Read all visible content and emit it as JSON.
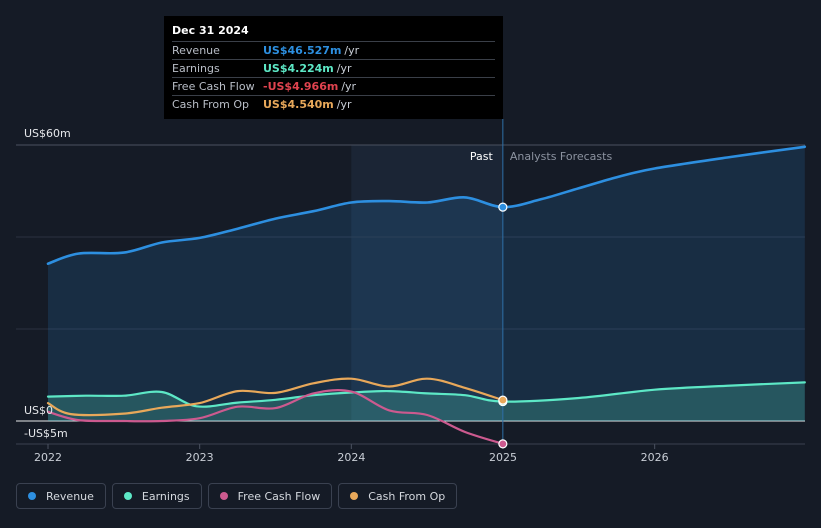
{
  "chart_data": {
    "type": "line",
    "y_axis": {
      "top_label": "US$60m",
      "zero_label": "US$0",
      "bottom_label": "-US$5m",
      "ylim": [
        -5,
        60
      ]
    },
    "x_axis": {
      "ticks": [
        {
          "year": 2022,
          "label": "2022"
        },
        {
          "year": 2023,
          "label": "2023"
        },
        {
          "year": 2024,
          "label": "2024"
        },
        {
          "year": 2025,
          "label": "2025"
        },
        {
          "year": 2026,
          "label": "2026"
        }
      ],
      "xlim": [
        2021.82,
        2026.99
      ]
    },
    "divider": {
      "year": 2024.999,
      "past_label": "Past",
      "forecast_label": "Analysts Forecasts"
    },
    "highlight_band": [
      2024.0,
      2024.999
    ],
    "series": [
      {
        "name": "Revenue",
        "color": "#2d8fe0",
        "filled": true,
        "points": [
          [
            2022.0,
            34.2
          ],
          [
            2022.2,
            36.4
          ],
          [
            2022.5,
            36.6
          ],
          [
            2022.75,
            38.8
          ],
          [
            2023.0,
            39.8
          ],
          [
            2023.25,
            41.8
          ],
          [
            2023.5,
            44.0
          ],
          [
            2023.75,
            45.6
          ],
          [
            2024.0,
            47.5
          ],
          [
            2024.25,
            47.8
          ],
          [
            2024.5,
            47.5
          ],
          [
            2024.75,
            48.6
          ],
          [
            2024.999,
            46.5
          ],
          [
            2025.25,
            48.2
          ],
          [
            2025.5,
            50.6
          ],
          [
            2025.75,
            53.0
          ],
          [
            2026.0,
            54.9
          ],
          [
            2026.5,
            57.4
          ],
          [
            2026.99,
            59.6
          ]
        ]
      },
      {
        "name": "Earnings",
        "color": "#5de8c6",
        "filled": true,
        "points": [
          [
            2022.0,
            5.3
          ],
          [
            2022.25,
            5.5
          ],
          [
            2022.5,
            5.5
          ],
          [
            2022.75,
            6.3
          ],
          [
            2022.98,
            3.2
          ],
          [
            2023.25,
            4.0
          ],
          [
            2023.5,
            4.6
          ],
          [
            2023.75,
            5.6
          ],
          [
            2024.0,
            6.2
          ],
          [
            2024.25,
            6.5
          ],
          [
            2024.5,
            6.0
          ],
          [
            2024.75,
            5.6
          ],
          [
            2024.999,
            4.224
          ],
          [
            2025.5,
            5.0
          ],
          [
            2026.0,
            6.8
          ],
          [
            2026.5,
            7.7
          ],
          [
            2026.99,
            8.4
          ]
        ]
      },
      {
        "name": "Free Cash Flow",
        "color": "#cc5a8f",
        "filled": false,
        "points": [
          [
            2022.0,
            2.0
          ],
          [
            2022.2,
            0.2
          ],
          [
            2022.5,
            0.0
          ],
          [
            2022.75,
            0.0
          ],
          [
            2023.0,
            0.6
          ],
          [
            2023.25,
            3.1
          ],
          [
            2023.5,
            2.8
          ],
          [
            2023.75,
            6.0
          ],
          [
            2024.0,
            6.4
          ],
          [
            2024.25,
            2.3
          ],
          [
            2024.5,
            1.3
          ],
          [
            2024.75,
            -2.4
          ],
          [
            2024.999,
            -4.966
          ]
        ]
      },
      {
        "name": "Cash From Op",
        "color": "#e8a85a",
        "filled": false,
        "points": [
          [
            2022.0,
            3.9
          ],
          [
            2022.15,
            1.5
          ],
          [
            2022.5,
            1.6
          ],
          [
            2022.75,
            2.9
          ],
          [
            2023.0,
            3.9
          ],
          [
            2023.25,
            6.5
          ],
          [
            2023.5,
            6.1
          ],
          [
            2023.75,
            8.2
          ],
          [
            2024.0,
            9.2
          ],
          [
            2024.25,
            7.5
          ],
          [
            2024.5,
            9.2
          ],
          [
            2024.75,
            7.2
          ],
          [
            2024.999,
            4.54
          ]
        ]
      }
    ]
  },
  "tooltip": {
    "date": "Dec 31 2024",
    "rows": [
      {
        "label": "Revenue",
        "value": "US$46.527m",
        "unit": "/yr",
        "color": "#2d8fe0"
      },
      {
        "label": "Earnings",
        "value": "US$4.224m",
        "unit": "/yr",
        "color": "#5de8c6"
      },
      {
        "label": "Free Cash Flow",
        "value": "-US$4.966m",
        "unit": "/yr",
        "color": "#e0434f"
      },
      {
        "label": "Cash From Op",
        "value": "US$4.540m",
        "unit": "/yr",
        "color": "#e8a85a"
      }
    ]
  },
  "legend": [
    {
      "label": "Revenue",
      "color": "#2d8fe0"
    },
    {
      "label": "Earnings",
      "color": "#5de8c6"
    },
    {
      "label": "Free Cash Flow",
      "color": "#cc5a8f"
    },
    {
      "label": "Cash From Op",
      "color": "#e8a85a"
    }
  ]
}
